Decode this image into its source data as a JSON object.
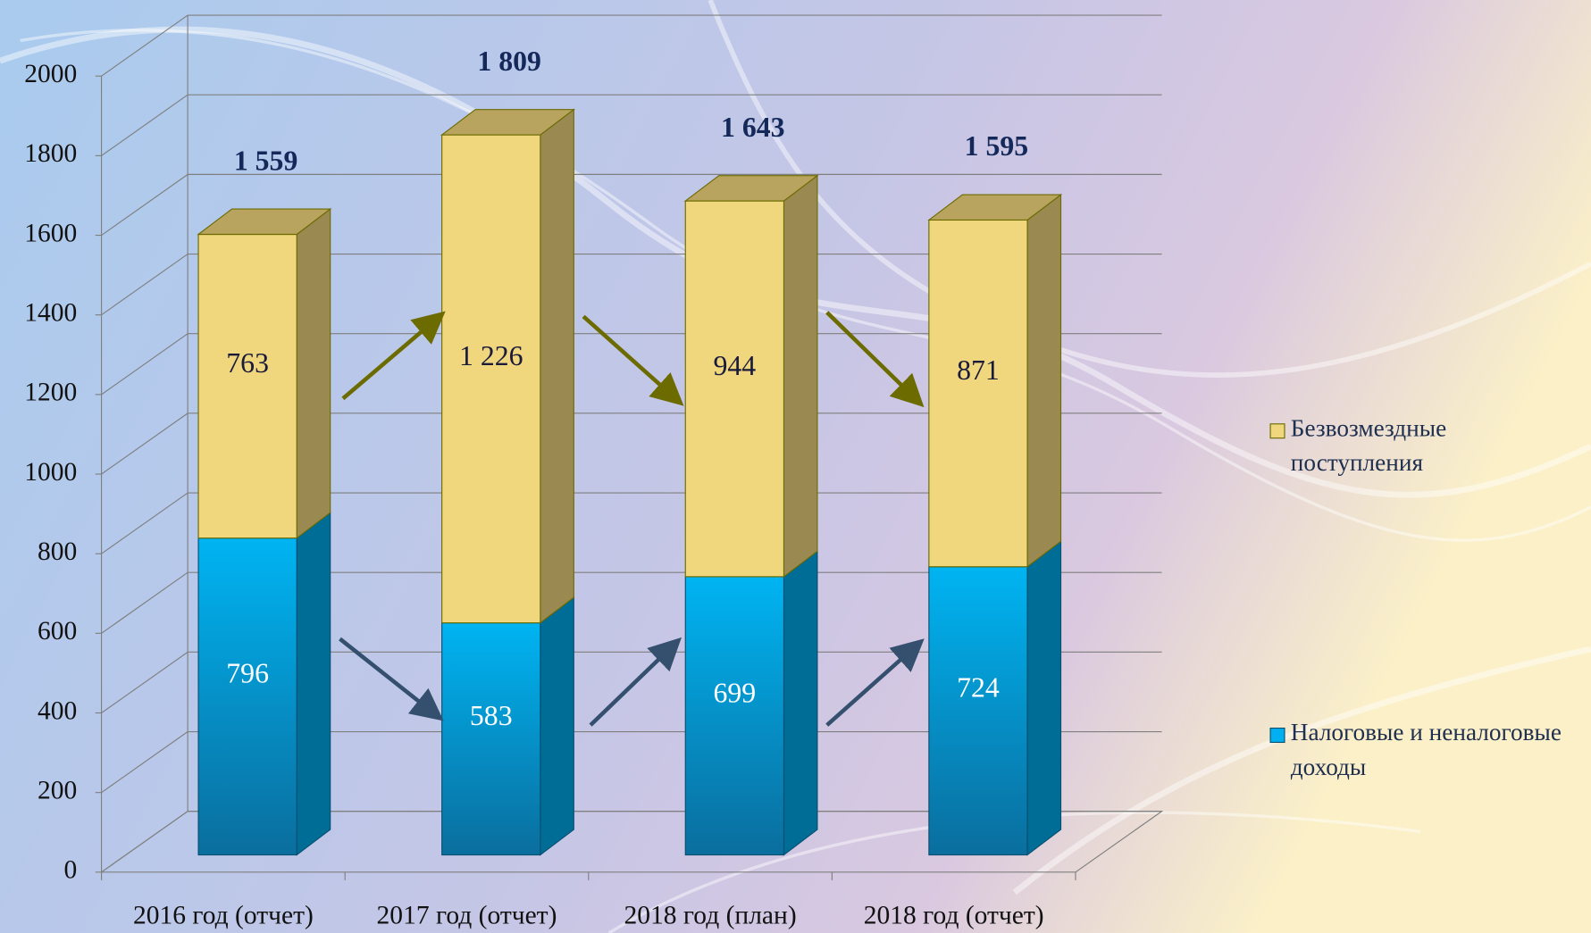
{
  "chart_data": {
    "type": "bar3d_stacked",
    "categories": [
      "2016 год (отчет)",
      "2017 год (отчет)",
      "2018 год (план)",
      "2018 год (отчет)"
    ],
    "series": [
      {
        "name": "Налоговые и неналоговые доходы",
        "color": "#00b0f0",
        "values": [
          796,
          583,
          699,
          724
        ]
      },
      {
        "name": "Безвозмездные поступления",
        "color": "#f0d77e",
        "values": [
          763,
          1226,
          944,
          871
        ],
        "value_labels": [
          "763",
          "1 226",
          "944",
          "871"
        ]
      }
    ],
    "totals": [
      1559,
      1809,
      1643,
      1595
    ],
    "total_labels": [
      "1 559",
      "1 809",
      "1 643",
      "1 595"
    ],
    "ylim": [
      0,
      2000
    ],
    "yticks": [
      0,
      200,
      400,
      600,
      800,
      1000,
      1200,
      1400,
      1600,
      1800,
      2000
    ],
    "grid": true,
    "legend": "right"
  }
}
